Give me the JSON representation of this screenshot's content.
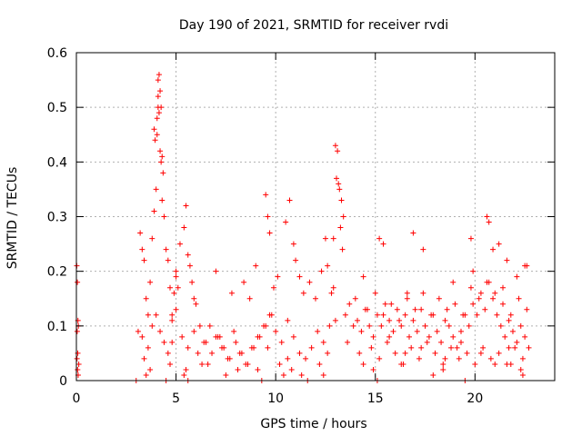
{
  "chart_data": {
    "type": "scatter",
    "title": "Day 190 of 2021, SRMTID for receiver rvdi",
    "xlabel": "GPS time / hours",
    "ylabel": "SRMTID / TECUs",
    "xlim": [
      0,
      24
    ],
    "ylim": [
      0,
      0.6
    ],
    "x_ticks": [
      0,
      5,
      10,
      15,
      20
    ],
    "x_tick_labels": [
      "0",
      "5",
      "10",
      "15",
      "20"
    ],
    "y_ticks": [
      0,
      0.1,
      0.2,
      0.3,
      0.4,
      0.5,
      0.6
    ],
    "y_tick_labels": [
      "0",
      "0.1",
      "0.2",
      "0.3",
      "0.4",
      "0.5",
      "0.6"
    ],
    "grid": true,
    "marker": "+",
    "color": "#ff0000",
    "series": [
      {
        "name": "SRMTID",
        "x": [
          0.02,
          0.05,
          0.08,
          0.1,
          0.03,
          0.06,
          0.12,
          0.04,
          0.09,
          0.07,
          3.0,
          3.2,
          3.3,
          3.4,
          3.5,
          3.6,
          3.7,
          3.8,
          3.9,
          4.0,
          4.05,
          4.1,
          4.15,
          4.2,
          4.25,
          4.3,
          4.4,
          4.5,
          4.6,
          4.7,
          4.8,
          4.9,
          5.0,
          5.2,
          5.4,
          5.5,
          5.6,
          5.7,
          5.8,
          5.9,
          6.0,
          3.3,
          3.6,
          3.8,
          4.0,
          4.2,
          4.4,
          4.6,
          4.8,
          5.0,
          5.3,
          5.6,
          5.9,
          6.2,
          6.5,
          6.8,
          7.1,
          7.4,
          7.7,
          8.0,
          8.3,
          8.6,
          8.9,
          9.2,
          9.5,
          9.8,
          4.1,
          4.15,
          4.2,
          4.1,
          4.05,
          4.25,
          3.9,
          3.95,
          4.3,
          4.35,
          6.1,
          6.4,
          6.7,
          7.0,
          7.3,
          7.6,
          7.9,
          8.2,
          8.5,
          8.8,
          9.1,
          9.4,
          9.7,
          10.0,
          10.3,
          10.6,
          10.9,
          11.2,
          11.5,
          11.8,
          12.1,
          12.4,
          12.7,
          13.0,
          9.5,
          9.6,
          9.7,
          10.5,
          10.7,
          10.9,
          11.0,
          11.2,
          13.0,
          13.1,
          13.2,
          13.3,
          13.4,
          13.15,
          13.25,
          12.9,
          13.35,
          13.05,
          12.5,
          12.6,
          12.8,
          13.5,
          13.7,
          13.9,
          14.1,
          14.3,
          14.5,
          14.7,
          14.9,
          15.1,
          15.3,
          15.5,
          15.7,
          15.9,
          16.1,
          16.3,
          16.5,
          16.7,
          16.9,
          17.1,
          17.3,
          17.5,
          17.7,
          17.9,
          18.1,
          18.3,
          18.5,
          18.7,
          18.9,
          19.1,
          19.3,
          19.5,
          19.7,
          19.9,
          20.1,
          20.3,
          20.5,
          20.7,
          20.9,
          21.1,
          21.3,
          21.5,
          21.7,
          21.9,
          22.1,
          22.3,
          22.5,
          22.7,
          14.2,
          14.8,
          15.2,
          15.6,
          16.0,
          16.4,
          16.8,
          17.2,
          17.6,
          18.0,
          18.4,
          18.8,
          19.2,
          19.6,
          20.0,
          20.4,
          20.8,
          21.2,
          21.6,
          22.0,
          22.4,
          14.0,
          14.6,
          15.0,
          15.4,
          15.8,
          16.2,
          16.6,
          17.0,
          17.4,
          17.8,
          18.2,
          18.6,
          19.0,
          19.4,
          19.8,
          20.2,
          20.6,
          21.0,
          21.4,
          21.8,
          22.2,
          22.6,
          15.2,
          15.4,
          16.9,
          17.4,
          19.8,
          20.6,
          20.7,
          20.9,
          21.2,
          21.6,
          22.5,
          3.5,
          3.7,
          4.5,
          4.7,
          5.4,
          5.5,
          5.6,
          6.6,
          7.5,
          9.1,
          9.3,
          10.2,
          10.4,
          10.8,
          11.6,
          12.2,
          12.4,
          14.9,
          15.1,
          16.3,
          17.9,
          18.4,
          19.5,
          21.8,
          22.4,
          5.0,
          5.1,
          7.0,
          7.8,
          8.4,
          8.7,
          9.0,
          9.9,
          10.1,
          11.4,
          11.7,
          12.0,
          12.3,
          12.9,
          14.4,
          16.6,
          18.9,
          19.9,
          21.4,
          22.1,
          22.6,
          3.1,
          3.4,
          4.8,
          6.3,
          7.2,
          8.1,
          9.6,
          10.6,
          11.3,
          12.6,
          13.6,
          14.4,
          15.7,
          16.5,
          17.3,
          18.5,
          19.3,
          20.3,
          21.0,
          21.7,
          22.3
        ],
        "y": [
          0.21,
          0.18,
          0.11,
          0.1,
          0.04,
          0.02,
          0.03,
          0.09,
          0.01,
          0.05,
          0.0,
          0.27,
          0.24,
          0.22,
          0.15,
          0.12,
          0.18,
          0.26,
          0.31,
          0.35,
          0.45,
          0.5,
          0.49,
          0.42,
          0.4,
          0.33,
          0.3,
          0.24,
          0.22,
          0.17,
          0.12,
          0.16,
          0.2,
          0.25,
          0.28,
          0.32,
          0.23,
          0.21,
          0.18,
          0.15,
          0.14,
          0.08,
          0.06,
          0.1,
          0.12,
          0.09,
          0.07,
          0.05,
          0.11,
          0.13,
          0.08,
          0.06,
          0.09,
          0.1,
          0.07,
          0.05,
          0.08,
          0.06,
          0.04,
          0.07,
          0.05,
          0.03,
          0.06,
          0.08,
          0.1,
          0.12,
          0.55,
          0.56,
          0.53,
          0.52,
          0.48,
          0.5,
          0.46,
          0.44,
          0.41,
          0.38,
          0.05,
          0.07,
          0.1,
          0.08,
          0.06,
          0.04,
          0.09,
          0.05,
          0.03,
          0.06,
          0.08,
          0.1,
          0.12,
          0.09,
          0.07,
          0.11,
          0.08,
          0.05,
          0.04,
          0.06,
          0.09,
          0.07,
          0.1,
          0.11,
          0.34,
          0.3,
          0.27,
          0.29,
          0.33,
          0.25,
          0.22,
          0.19,
          0.43,
          0.42,
          0.35,
          0.33,
          0.3,
          0.36,
          0.28,
          0.26,
          0.24,
          0.37,
          0.26,
          0.21,
          0.16,
          0.12,
          0.14,
          0.1,
          0.11,
          0.09,
          0.13,
          0.1,
          0.08,
          0.12,
          0.1,
          0.14,
          0.11,
          0.09,
          0.13,
          0.1,
          0.12,
          0.08,
          0.11,
          0.09,
          0.13,
          0.1,
          0.08,
          0.12,
          0.09,
          0.07,
          0.11,
          0.1,
          0.08,
          0.06,
          0.09,
          0.12,
          0.1,
          0.14,
          0.12,
          0.16,
          0.13,
          0.18,
          0.15,
          0.12,
          0.1,
          0.08,
          0.11,
          0.09,
          0.07,
          0.1,
          0.08,
          0.06,
          0.05,
          0.06,
          0.04,
          0.07,
          0.05,
          0.03,
          0.06,
          0.04,
          0.07,
          0.05,
          0.03,
          0.06,
          0.04,
          0.05,
          0.03,
          0.06,
          0.04,
          0.05,
          0.03,
          0.06,
          0.04,
          0.15,
          0.13,
          0.16,
          0.12,
          0.14,
          0.11,
          0.15,
          0.13,
          0.16,
          0.12,
          0.15,
          0.13,
          0.14,
          0.12,
          0.17,
          0.15,
          0.18,
          0.16,
          0.14,
          0.12,
          0.15,
          0.13,
          0.26,
          0.25,
          0.27,
          0.24,
          0.26,
          0.3,
          0.29,
          0.24,
          0.25,
          0.22,
          0.21,
          0.01,
          0.02,
          0.0,
          0.03,
          0.01,
          0.02,
          0.0,
          0.03,
          0.01,
          0.02,
          0.0,
          0.03,
          0.01,
          0.02,
          0.0,
          0.03,
          0.01,
          0.02,
          0.0,
          0.03,
          0.01,
          0.02,
          0.0,
          0.03,
          0.01,
          0.19,
          0.17,
          0.2,
          0.16,
          0.18,
          0.15,
          0.21,
          0.17,
          0.19,
          0.16,
          0.18,
          0.15,
          0.2,
          0.17,
          0.19,
          0.16,
          0.18,
          0.2,
          0.17,
          0.19,
          0.21,
          0.09,
          0.04,
          0.07,
          0.03,
          0.08,
          0.02,
          0.06,
          0.04,
          0.01,
          0.05,
          0.07,
          0.03,
          0.08,
          0.05,
          0.06,
          0.04,
          0.07,
          0.05,
          0.03,
          0.06,
          0.02
        ]
      }
    ]
  }
}
